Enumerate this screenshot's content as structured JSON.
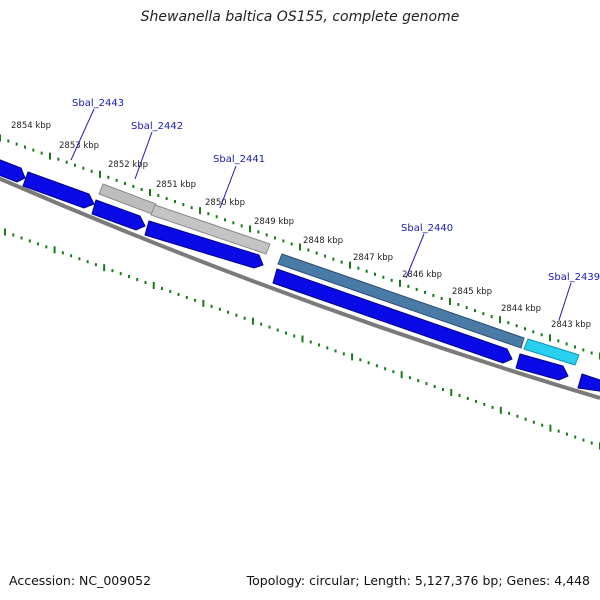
{
  "title": "Shewanella baltica OS155, complete genome",
  "footer": {
    "accession": "Accession: NC_009052",
    "summary": "Topology: circular; Length: 5,127,376 bp; Genes: 4,448"
  },
  "ticks": [
    {
      "label": "2854 kbp"
    },
    {
      "label": "2853 kbp"
    },
    {
      "label": "2852 kbp"
    },
    {
      "label": "2851 kbp"
    },
    {
      "label": "2850 kbp"
    },
    {
      "label": "2849 kbp"
    },
    {
      "label": "2848 kbp"
    },
    {
      "label": "2847 kbp"
    },
    {
      "label": "2846 kbp"
    },
    {
      "label": "2845 kbp"
    },
    {
      "label": "2844 kbp"
    },
    {
      "label": "2843 kbp"
    }
  ],
  "gene_labels": [
    {
      "label": "Sbal_2443"
    },
    {
      "label": "Sbal_2442"
    },
    {
      "label": "Sbal_2441"
    },
    {
      "label": "Sbal_2440"
    },
    {
      "label": "Sbal_2439"
    }
  ],
  "colors": {
    "cds": "#0a0ae6",
    "cds_border": "#00008a",
    "grey_feature": "#bdbdbd",
    "steel_feature": "#4a7aa6",
    "cyan_feature": "#2ad0ef",
    "backbone": "#7a7a7a",
    "tick": "#1a7a1a",
    "gene_label": "#1a1ab4"
  }
}
